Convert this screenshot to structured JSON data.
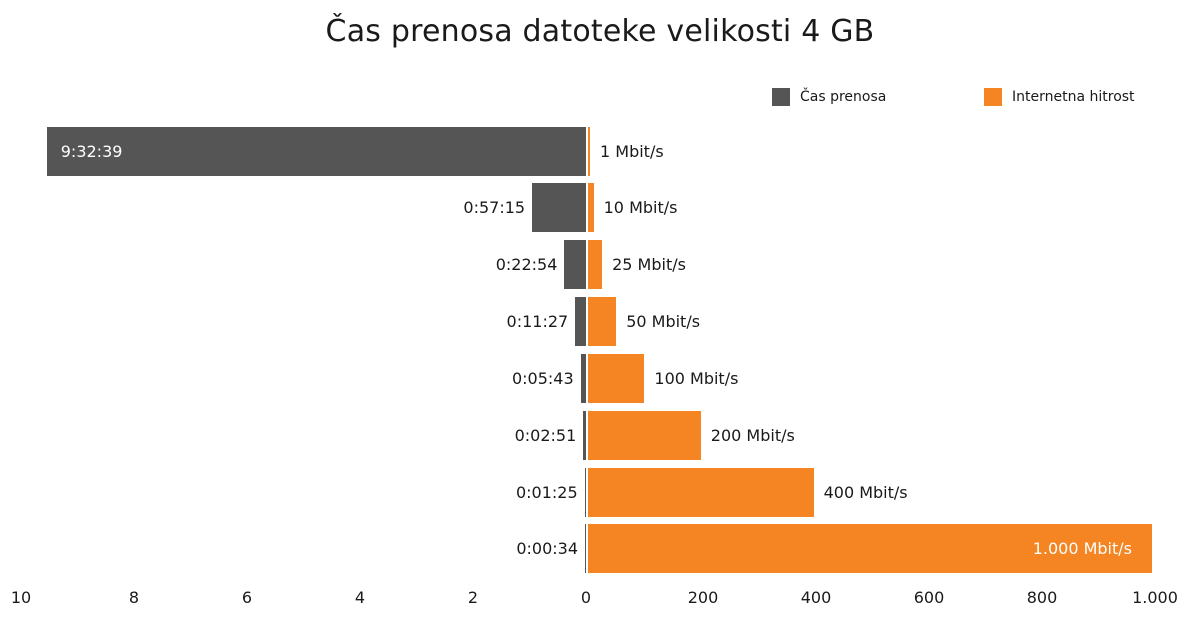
{
  "title": "Čas prenosa datoteke velikosti 4 GB",
  "legend": [
    {
      "label": "Čas prenosa",
      "color": "#555555"
    },
    {
      "label": "Internetna hitrost",
      "color": "#f58423"
    }
  ],
  "colors": {
    "time": "#555555",
    "speed": "#f58423"
  },
  "left_axis_ticks": [
    "10",
    "8",
    "6",
    "4",
    "2",
    "0"
  ],
  "right_axis_ticks": [
    "0",
    "200",
    "400",
    "600",
    "800",
    "1.000"
  ],
  "rows": [
    {
      "time_label": "9:32:39",
      "speed_label": "1 Mbit/s"
    },
    {
      "time_label": "0:57:15",
      "speed_label": "10 Mbit/s"
    },
    {
      "time_label": "0:22:54",
      "speed_label": "25 Mbit/s"
    },
    {
      "time_label": "0:11:27",
      "speed_label": "50 Mbit/s"
    },
    {
      "time_label": "0:05:43",
      "speed_label": "100 Mbit/s"
    },
    {
      "time_label": "0:02:51",
      "speed_label": "200 Mbit/s"
    },
    {
      "time_label": "0:01:25",
      "speed_label": "400 Mbit/s"
    },
    {
      "time_label": "0:00:34",
      "speed_label": "1.000 Mbit/s"
    }
  ],
  "chart_data": {
    "type": "bar",
    "orientation": "horizontal",
    "layout": "back-to-back (diverging)",
    "title": "Čas prenosa datoteke velikosti 4 GB",
    "categories": [
      "1 Mbit/s",
      "10 Mbit/s",
      "25 Mbit/s",
      "50 Mbit/s",
      "100 Mbit/s",
      "200 Mbit/s",
      "400 Mbit/s",
      "1.000 Mbit/s"
    ],
    "series": [
      {
        "name": "Čas prenosa",
        "unit": "hours",
        "side": "left",
        "labels": [
          "9:32:39",
          "0:57:15",
          "0:22:54",
          "0:11:27",
          "0:05:43",
          "0:02:51",
          "0:01:25",
          "0:00:34"
        ],
        "values": [
          9.544,
          0.954,
          0.382,
          0.191,
          0.095,
          0.048,
          0.024,
          0.009
        ]
      },
      {
        "name": "Internetna hitrost",
        "unit": "Mbit/s",
        "side": "right",
        "values": [
          1,
          10,
          25,
          50,
          100,
          200,
          400,
          1000
        ]
      }
    ],
    "left_axis": {
      "ticks": [
        10,
        8,
        6,
        4,
        2,
        0
      ],
      "range": [
        10,
        0
      ],
      "reversed": true
    },
    "right_axis": {
      "ticks": [
        0,
        200,
        400,
        600,
        800,
        1000
      ],
      "tick_labels": [
        "0",
        "200",
        "400",
        "600",
        "800",
        "1.000"
      ],
      "range": [
        0,
        1000
      ]
    },
    "grid": false,
    "legend_position": "top-right"
  }
}
